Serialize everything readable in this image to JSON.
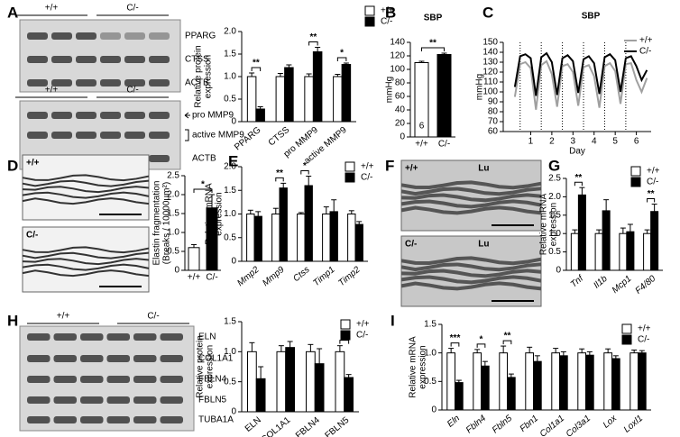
{
  "letters": [
    "A",
    "B",
    "C",
    "D",
    "E",
    "F",
    "G",
    "H",
    "I"
  ],
  "blots": [
    {
      "groups": [
        "+/+",
        "C/-"
      ],
      "rows": [
        "PPARG",
        "CTSS",
        "ACTB"
      ]
    },
    {
      "groups": [
        "+/+",
        "C/-"
      ],
      "rows": [
        "pro MMP9",
        "active MMP9",
        "ACTB"
      ]
    },
    {
      "groups": [
        "+/+",
        "C/-"
      ],
      "rows": [
        "ELN",
        "COL1A1",
        "FBLN4",
        "FBLN5",
        "TUBA1A"
      ]
    }
  ],
  "images": [
    {
      "labels": [
        "+/+"
      ]
    },
    {
      "labels": [
        "C/-"
      ]
    },
    {
      "labels": [
        "+/+",
        "Lu"
      ]
    },
    {
      "labels": [
        "C/-",
        "Lu"
      ]
    }
  ],
  "chart_data": [
    {
      "type": "bar",
      "ylabel": [
        "Relative protein",
        "expression"
      ],
      "categories": [
        "PPARG",
        "CTSS",
        "pro MMP9",
        "active MMP9"
      ],
      "series": [
        {
          "name": "+/+",
          "color": "#ffffff",
          "values": [
            1,
            1,
            1,
            1
          ],
          "errors": [
            0.08,
            0.07,
            0.06,
            0.05
          ]
        },
        {
          "name": "C/-",
          "color": "#000000",
          "values": [
            0.28,
            1.2,
            1.55,
            1.27
          ],
          "errors": [
            0.05,
            0.06,
            0.1,
            0.03
          ]
        }
      ],
      "significance": [
        "**",
        null,
        "**",
        "*"
      ],
      "ylim": [
        0,
        2
      ],
      "yticks": [
        0,
        0.5,
        {
          "value": 1,
          "label": "1.0"
        },
        1.5,
        {
          "value": 2,
          "label": "2.0"
        }
      ]
    },
    {
      "type": "bar",
      "title": "SBP",
      "ylabel": [
        "mmHg"
      ],
      "categories": [
        "+/+",
        "C/-"
      ],
      "values": [
        110,
        122
      ],
      "errors": [
        2,
        2
      ],
      "colors": [
        "#ffffff",
        "#000000"
      ],
      "n": [
        6,
        6
      ],
      "significance": "**",
      "ylim": [
        0,
        140
      ],
      "yticks": [
        0,
        20,
        40,
        60,
        80,
        100,
        120,
        140
      ]
    },
    {
      "type": "line",
      "title": "SBP",
      "ylabel": [
        "mmHg"
      ],
      "xlabel": "Day",
      "x": [
        0.25,
        0.5,
        0.75,
        1,
        1.25,
        1.5,
        1.75,
        2,
        2.25,
        2.5,
        2.75,
        3,
        3.25,
        3.5,
        3.75,
        4,
        4.25,
        4.5,
        4.75,
        5,
        5.25,
        5.5,
        5.75,
        6,
        6.25,
        6.5
      ],
      "series": [
        {
          "name": "+/+",
          "color": "#a0a0a0",
          "values": [
            95,
            128,
            130,
            124,
            82,
            127,
            131,
            118,
            85,
            126,
            128,
            120,
            86,
            125,
            127,
            116,
            84,
            126,
            129,
            121,
            88,
            128,
            129,
            112,
            100,
            114
          ]
        },
        {
          "name": "C/-",
          "color": "#000000",
          "values": [
            105,
            136,
            138,
            134,
            96,
            135,
            139,
            130,
            97,
            134,
            137,
            131,
            99,
            133,
            136,
            129,
            98,
            135,
            138,
            132,
            100,
            134,
            136,
            126,
            112,
            122
          ]
        }
      ],
      "vlines": [
        0.5,
        1.5,
        2.5,
        3.5,
        4.5,
        5.5
      ],
      "xlim": [
        -0.3,
        6.7
      ],
      "xticks": [
        1,
        2,
        3,
        4,
        5,
        6
      ],
      "ylim": [
        60,
        150
      ],
      "yticks": [
        60,
        70,
        80,
        90,
        100,
        110,
        120,
        130,
        140,
        150
      ]
    },
    {
      "type": "bar",
      "ylabel": [
        "Elastin fragmentation",
        "(Breaks / 10000μm²)"
      ],
      "categories": [
        "+/+",
        "C/-"
      ],
      "values": [
        0.6,
        1.65
      ],
      "errors": [
        0.08,
        0.35
      ],
      "colors": [
        "#ffffff",
        "#000000"
      ],
      "significance": "*",
      "ylim": [
        0,
        2.5
      ],
      "yticks": [
        0,
        0.5,
        {
          "value": 1,
          "label": "1.0"
        },
        1.5,
        {
          "value": 2,
          "label": "2.0"
        },
        2.5
      ]
    },
    {
      "type": "bar",
      "ylabel": [
        "Relative mRNA",
        "expression"
      ],
      "italic_categories": true,
      "categories": [
        "Mmp2",
        "Mmp9",
        "Ctss",
        "Timp1",
        "Timp2"
      ],
      "series": [
        {
          "name": "+/+",
          "color": "#ffffff",
          "values": [
            1,
            1,
            1,
            1,
            1
          ],
          "errors": [
            0.08,
            0.12,
            0.03,
            0.15,
            0.07
          ]
        },
        {
          "name": "C/-",
          "color": "#000000",
          "values": [
            0.95,
            1.55,
            1.6,
            1.05,
            0.78
          ],
          "errors": [
            0.1,
            0.1,
            0.2,
            0.25,
            0.06
          ]
        }
      ],
      "significance": [
        null,
        "**",
        "*",
        null,
        null
      ],
      "ylim": [
        0,
        2
      ],
      "yticks": [
        0,
        0.5,
        {
          "value": 1,
          "label": "1.0"
        },
        1.5,
        {
          "value": 2,
          "label": "2.0"
        }
      ]
    },
    {
      "type": "bar",
      "ylabel": [
        "Relative mRNA",
        "expression"
      ],
      "italic_categories": true,
      "categories": [
        "Tnf",
        "Il1b",
        "Mcp1",
        "F4/80"
      ],
      "series": [
        {
          "name": "+/+",
          "color": "#ffffff",
          "values": [
            1,
            1,
            1,
            1
          ],
          "errors": [
            0.1,
            0.1,
            0.15,
            0.1
          ]
        },
        {
          "name": "C/-",
          "color": "#000000",
          "values": [
            2.05,
            1.62,
            1.05,
            1.6
          ],
          "errors": [
            0.2,
            0.3,
            0.2,
            0.2
          ]
        }
      ],
      "significance": [
        "**",
        null,
        null,
        "**"
      ],
      "ylim": [
        0,
        2.5
      ],
      "yticks": [
        0,
        0.5,
        {
          "value": 1,
          "label": "1.0"
        },
        1.5,
        {
          "value": 2,
          "label": "2.0"
        },
        2.5
      ]
    },
    {
      "type": "bar",
      "ylabel": [
        "Relative protein",
        "expression"
      ],
      "categories": [
        "ELN",
        "COL1A1",
        "FBLN4",
        "FBLN5"
      ],
      "series": [
        {
          "name": "+/+",
          "color": "#ffffff",
          "values": [
            1,
            1,
            1,
            1
          ],
          "errors": [
            0.15,
            0.1,
            0.12,
            0.1
          ]
        },
        {
          "name": "C/-",
          "color": "#000000",
          "values": [
            0.55,
            1.07,
            0.8,
            0.57
          ],
          "errors": [
            0.2,
            0.1,
            0.25,
            0.05
          ]
        }
      ],
      "significance": [
        null,
        null,
        null,
        "*"
      ],
      "ylim": [
        0,
        1.5
      ],
      "yticks": [
        0,
        0.5,
        {
          "value": 1,
          "label": "1.0"
        },
        1.5
      ]
    },
    {
      "type": "bar",
      "ylabel": [
        "Relative mRNA",
        "expression"
      ],
      "italic_categories": true,
      "categories": [
        "Eln",
        "Fbln4",
        "Fbln5",
        "Fbn1",
        "Col1a1",
        "Col3a1",
        "Lox",
        "Loxl1"
      ],
      "series": [
        {
          "name": "+/+",
          "color": "#ffffff",
          "values": [
            1,
            1,
            1,
            1,
            1,
            1,
            1,
            1
          ],
          "errors": [
            0.08,
            0.06,
            0.12,
            0.1,
            0.08,
            0.07,
            0.07,
            0.05
          ]
        },
        {
          "name": "C/-",
          "color": "#000000",
          "values": [
            0.48,
            0.77,
            0.57,
            0.85,
            0.95,
            0.96,
            0.9,
            1.0
          ],
          "errors": [
            0.04,
            0.08,
            0.06,
            0.1,
            0.07,
            0.06,
            0.05,
            0.04
          ]
        }
      ],
      "significance": [
        "***",
        "*",
        "**",
        null,
        null,
        null,
        null,
        null
      ],
      "ylim": [
        0,
        1.5
      ],
      "yticks": [
        0,
        0.5,
        {
          "value": 1,
          "label": "1.0"
        },
        1.5
      ]
    }
  ]
}
